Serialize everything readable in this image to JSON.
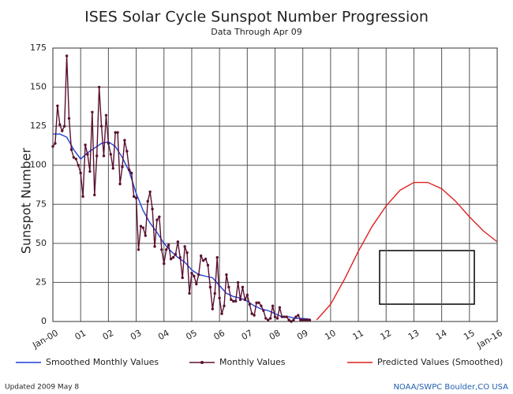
{
  "chart_data": {
    "type": "line",
    "title": "ISES Solar Cycle Sunspot Number Progression",
    "subtitle": "Data Through Apr 09",
    "y_label": "Sunspot Number",
    "xlim": [
      0,
      16
    ],
    "xticks": [
      {
        "value": 0,
        "label": "Jan-00"
      },
      {
        "value": 1,
        "label": "01"
      },
      {
        "value": 2,
        "label": "02"
      },
      {
        "value": 3,
        "label": "03"
      },
      {
        "value": 4,
        "label": "04"
      },
      {
        "value": 5,
        "label": "05"
      },
      {
        "value": 6,
        "label": "06"
      },
      {
        "value": 7,
        "label": "07"
      },
      {
        "value": 8,
        "label": "08"
      },
      {
        "value": 9,
        "label": "09"
      },
      {
        "value": 10,
        "label": "10"
      },
      {
        "value": 11,
        "label": "11"
      },
      {
        "value": 12,
        "label": "12"
      },
      {
        "value": 13,
        "label": "13"
      },
      {
        "value": 14,
        "label": "14"
      },
      {
        "value": 15,
        "label": "15"
      },
      {
        "value": 16,
        "label": "Jan-16"
      }
    ],
    "ylim": [
      0,
      175
    ],
    "yticks": [
      0,
      25,
      50,
      75,
      100,
      125,
      150,
      175
    ],
    "grid": true,
    "series": [
      {
        "name": "Smoothed Monthly Values",
        "color": "#1f3fd6",
        "markers": false,
        "x": [
          0,
          0.25,
          0.5,
          0.75,
          1,
          1.25,
          1.5,
          1.75,
          2,
          2.25,
          2.5,
          2.75,
          3,
          3.25,
          3.5,
          3.75,
          4,
          4.25,
          4.5,
          4.75,
          5,
          5.25,
          5.5,
          5.75,
          6,
          6.25,
          6.5,
          6.75,
          7,
          7.25,
          7.5,
          7.75,
          8,
          8.25,
          8.5,
          8.75,
          9,
          9.25
        ],
        "values": [
          120,
          120,
          118,
          110,
          104,
          108,
          111,
          114,
          115,
          112,
          105,
          96,
          82,
          71,
          63,
          57,
          50,
          45,
          41,
          38,
          33,
          30,
          29,
          28,
          23,
          18,
          16,
          15,
          13,
          10,
          8,
          7,
          5,
          3,
          3,
          2,
          2,
          1.5
        ]
      },
      {
        "name": "Monthly Values",
        "color": "#5a1030",
        "markers": true,
        "x": [
          0,
          0.083,
          0.167,
          0.25,
          0.333,
          0.417,
          0.5,
          0.583,
          0.667,
          0.75,
          0.833,
          0.917,
          1,
          1.083,
          1.167,
          1.25,
          1.333,
          1.417,
          1.5,
          1.583,
          1.667,
          1.75,
          1.833,
          1.917,
          2,
          2.083,
          2.167,
          2.25,
          2.333,
          2.417,
          2.5,
          2.583,
          2.667,
          2.75,
          2.833,
          2.917,
          3,
          3.083,
          3.167,
          3.25,
          3.333,
          3.417,
          3.5,
          3.583,
          3.667,
          3.75,
          3.833,
          3.917,
          4,
          4.083,
          4.167,
          4.25,
          4.333,
          4.417,
          4.5,
          4.583,
          4.667,
          4.75,
          4.833,
          4.917,
          5,
          5.083,
          5.167,
          5.25,
          5.333,
          5.417,
          5.5,
          5.583,
          5.667,
          5.75,
          5.833,
          5.917,
          6,
          6.083,
          6.167,
          6.25,
          6.333,
          6.417,
          6.5,
          6.583,
          6.667,
          6.75,
          6.833,
          6.917,
          7,
          7.083,
          7.167,
          7.25,
          7.333,
          7.417,
          7.5,
          7.583,
          7.667,
          7.75,
          7.833,
          7.917,
          8,
          8.083,
          8.167,
          8.25,
          8.333,
          8.417,
          8.5,
          8.583,
          8.667,
          8.75,
          8.833,
          8.917,
          9,
          9.083,
          9.167,
          9.25
        ],
        "values": [
          112,
          114,
          138,
          126,
          122,
          125,
          170,
          130,
          110,
          105,
          104,
          100,
          95,
          80,
          113,
          107,
          96,
          134,
          81,
          106,
          150,
          125,
          106,
          132,
          114,
          107,
          98,
          121,
          121,
          88,
          99,
          116,
          109,
          97,
          95,
          80,
          79,
          46,
          61,
          60,
          55,
          77,
          83,
          72,
          48,
          65,
          67,
          46,
          37,
          46,
          49,
          40,
          41,
          43,
          51,
          41,
          28,
          48,
          44,
          18,
          31,
          29,
          24,
          30,
          42,
          39,
          40,
          36,
          22,
          8,
          18,
          41,
          15,
          5,
          10,
          30,
          22,
          14,
          13,
          13,
          25,
          14,
          22,
          14,
          17,
          11,
          5,
          4,
          12,
          12,
          10,
          7,
          2,
          1,
          2,
          10,
          3,
          2,
          9,
          3,
          3,
          3,
          1,
          0,
          1,
          3,
          4,
          1,
          1,
          1,
          1,
          1
        ]
      },
      {
        "name": "Predicted Values (Smoothed)",
        "color": "#e02020",
        "markers": false,
        "x": [
          9.5,
          10,
          10.5,
          11,
          11.5,
          12,
          12.5,
          13,
          13.5,
          14,
          14.5,
          15,
          15.5,
          16
        ],
        "values": [
          1,
          11,
          27,
          45,
          61,
          74,
          84,
          89,
          89,
          85,
          77,
          67,
          58,
          51
        ]
      }
    ],
    "footer_left": "Updated 2009 May  8",
    "footer_right": "NOAA/SWPC Boulder,CO USA"
  }
}
